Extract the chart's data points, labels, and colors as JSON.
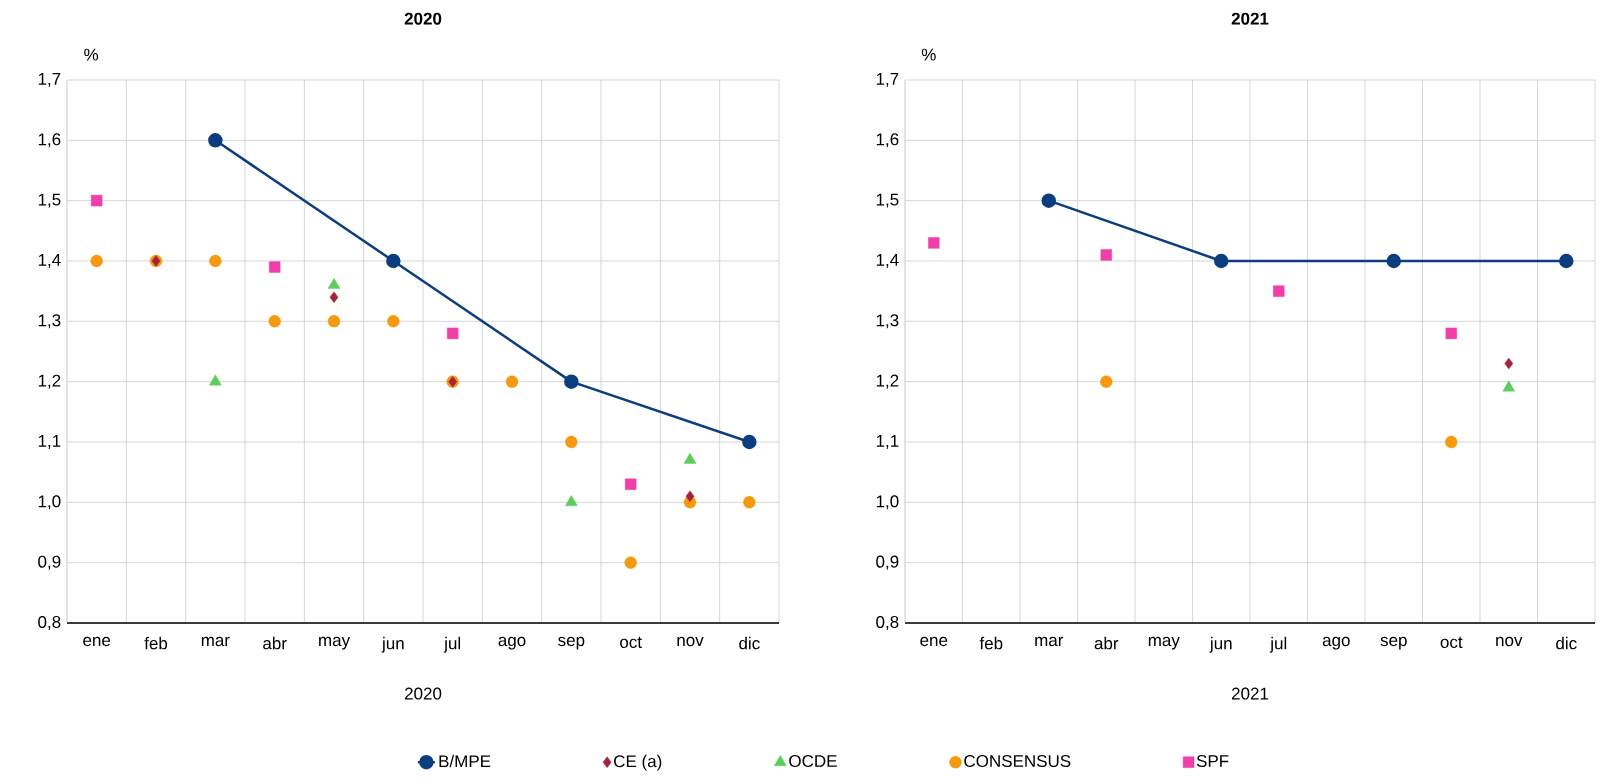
{
  "chart_data": [
    {
      "type": "scatter",
      "title": "2020",
      "xlabel": "2020",
      "ylabel": "%",
      "categories": [
        "ene",
        "feb",
        "mar",
        "abr",
        "may",
        "jun",
        "jul",
        "ago",
        "sep",
        "oct",
        "nov",
        "dic"
      ],
      "ylim": [
        0.8,
        1.7
      ],
      "yticks": [
        {
          "value": 0.8,
          "label": "0,8"
        },
        {
          "value": 0.9,
          "label": "0,9"
        },
        {
          "value": 1.0,
          "label": "1,0"
        },
        {
          "value": 1.1,
          "label": "1,1"
        },
        {
          "value": 1.2,
          "label": "1,2"
        },
        {
          "value": 1.3,
          "label": "1,3"
        },
        {
          "value": 1.4,
          "label": "1,4"
        },
        {
          "value": 1.5,
          "label": "1,5"
        },
        {
          "value": 1.6,
          "label": "1,6"
        },
        {
          "value": 1.7,
          "label": "1,7"
        }
      ],
      "grid": true,
      "legend": "bottom",
      "series": [
        {
          "name": "B/MPE",
          "type": "line",
          "marker": "circle",
          "line_style": "solid",
          "color": "#0b3d7f",
          "values": [
            null,
            null,
            1.6,
            null,
            null,
            1.4,
            null,
            null,
            1.2,
            null,
            null,
            1.1
          ]
        },
        {
          "name": "CE (a)",
          "marker": "diamond",
          "color": "#a5243d",
          "values": [
            null,
            1.4,
            null,
            null,
            1.34,
            null,
            1.2,
            null,
            null,
            null,
            1.01,
            null
          ]
        },
        {
          "name": "OCDE",
          "marker": "triangle",
          "color": "#5ccc5c",
          "values": [
            null,
            null,
            1.2,
            null,
            1.36,
            null,
            null,
            null,
            1.0,
            null,
            1.07,
            null
          ]
        },
        {
          "name": "CONSENSUS",
          "marker": "circle",
          "color": "#f59a0e",
          "values": [
            1.4,
            1.4,
            1.4,
            1.3,
            1.3,
            1.3,
            1.2,
            1.2,
            1.1,
            0.9,
            1.0,
            1.0
          ]
        },
        {
          "name": "SPF",
          "marker": "square",
          "color": "#f03fa8",
          "values": [
            1.5,
            null,
            null,
            1.39,
            null,
            null,
            1.28,
            null,
            null,
            1.03,
            null,
            null
          ]
        }
      ]
    },
    {
      "type": "scatter",
      "title": "2021",
      "xlabel": "2021",
      "ylabel": "%",
      "categories": [
        "ene",
        "feb",
        "mar",
        "abr",
        "may",
        "jun",
        "jul",
        "ago",
        "sep",
        "oct",
        "nov",
        "dic"
      ],
      "ylim": [
        0.8,
        1.7
      ],
      "yticks": [
        {
          "value": 0.8,
          "label": "0,8"
        },
        {
          "value": 0.9,
          "label": "0,9"
        },
        {
          "value": 1.0,
          "label": "1,0"
        },
        {
          "value": 1.1,
          "label": "1,1"
        },
        {
          "value": 1.2,
          "label": "1,2"
        },
        {
          "value": 1.3,
          "label": "1,3"
        },
        {
          "value": 1.4,
          "label": "1,4"
        },
        {
          "value": 1.5,
          "label": "1,5"
        },
        {
          "value": 1.6,
          "label": "1,6"
        },
        {
          "value": 1.7,
          "label": "1,7"
        }
      ],
      "grid": true,
      "series": [
        {
          "type": "line",
          "marker": "circle",
          "line_style": "solid",
          "color": "#0b3d7f",
          "values": [
            null,
            null,
            1.5,
            null,
            null,
            1.4,
            null,
            null,
            1.4,
            null,
            null,
            1.4
          ]
        },
        {
          "marker": "diamond",
          "color": "#a5243d",
          "values": [
            null,
            null,
            null,
            null,
            null,
            null,
            null,
            null,
            null,
            null,
            1.23,
            null
          ]
        },
        {
          "marker": "triangle",
          "color": "#5ccc5c",
          "values": [
            null,
            null,
            null,
            null,
            null,
            null,
            null,
            null,
            null,
            null,
            1.19,
            null
          ]
        },
        {
          "marker": "circle",
          "color": "#f59a0e",
          "values": [
            null,
            null,
            null,
            1.2,
            null,
            null,
            null,
            null,
            null,
            1.1,
            null,
            null
          ]
        },
        {
          "marker": "square",
          "color": "#f03fa8",
          "values": [
            1.43,
            null,
            null,
            1.41,
            null,
            null,
            1.35,
            null,
            null,
            1.28,
            null,
            null
          ]
        }
      ]
    }
  ]
}
